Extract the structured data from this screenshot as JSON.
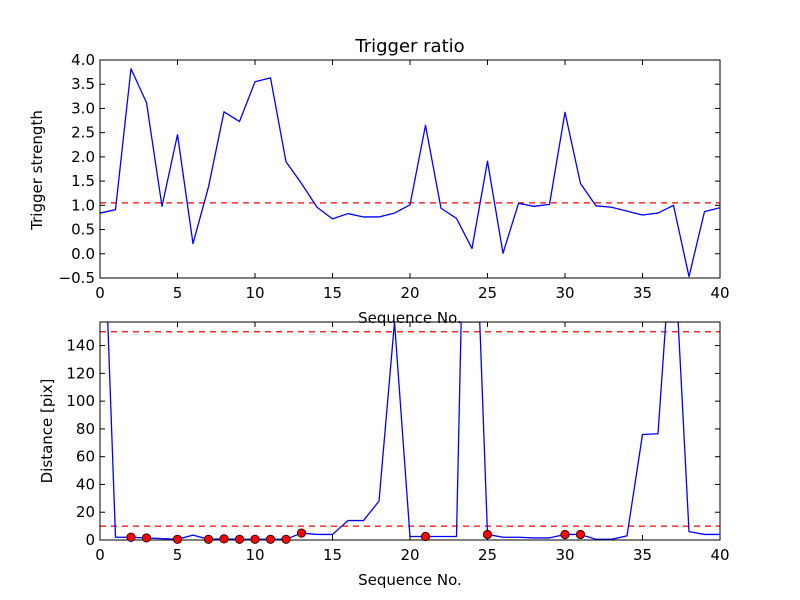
{
  "colors": {
    "line": "#0000ff",
    "threshold": "#ff0000",
    "marker": "#ff0000",
    "frame": "#000000"
  },
  "chart_data": [
    {
      "type": "line",
      "title": "Trigger ratio",
      "xlabel": "Sequence No.",
      "ylabel": "Trigger strength",
      "xlim": [
        0,
        40
      ],
      "ylim": [
        -0.5,
        4.0
      ],
      "xticks": [
        0,
        5,
        10,
        15,
        20,
        25,
        30,
        35,
        40
      ],
      "yticks": [
        -0.5,
        0.0,
        0.5,
        1.0,
        1.5,
        2.0,
        2.5,
        3.0,
        3.5,
        4.0
      ],
      "ytick_labels": [
        "−0.5",
        "0.0",
        "0.5",
        "1.0",
        "1.5",
        "2.0",
        "2.5",
        "3.0",
        "3.5",
        "4.0"
      ],
      "series": [
        {
          "x": [
            0,
            1,
            2,
            3,
            4,
            5,
            6,
            7,
            8,
            9,
            10,
            11,
            12,
            13,
            14,
            15,
            16,
            17,
            18,
            19,
            20,
            21,
            22,
            23,
            24,
            25,
            26,
            27,
            28,
            29,
            30,
            31,
            32,
            33,
            34,
            35,
            36,
            37,
            38,
            39,
            40
          ],
          "y": [
            0.84,
            0.91,
            3.82,
            3.12,
            0.98,
            2.46,
            0.21,
            1.38,
            2.93,
            2.73,
            3.55,
            3.63,
            1.9,
            1.45,
            0.96,
            0.72,
            0.83,
            0.76,
            0.76,
            0.84,
            1.01,
            2.65,
            0.94,
            0.73,
            0.11,
            1.91,
            0.01,
            1.04,
            0.98,
            1.02,
            2.92,
            1.45,
            0.99,
            0.96,
            0.88,
            0.8,
            0.84,
            1.0,
            -0.47,
            0.87,
            0.95
          ]
        }
      ],
      "threshold_lines": [
        1.05
      ]
    },
    {
      "type": "line",
      "xlabel": "Sequence No.",
      "ylabel": "Distance [pix]",
      "xlim": [
        0,
        40
      ],
      "ylim": [
        0,
        157
      ],
      "xticks": [
        0,
        5,
        10,
        15,
        20,
        25,
        30,
        35,
        40
      ],
      "yticks": [
        0,
        20,
        40,
        60,
        80,
        100,
        120,
        140
      ],
      "series": [
        {
          "x": [
            0.5,
            1,
            2,
            3,
            4,
            5,
            6,
            7,
            8,
            9,
            10,
            11,
            12,
            13,
            14,
            15,
            16,
            17,
            18,
            19,
            20,
            21,
            22,
            23,
            23.3,
            24.5,
            25,
            26,
            27,
            28,
            29,
            30,
            31,
            32,
            33,
            34,
            35,
            36,
            36.5,
            37.3,
            38,
            39,
            40
          ],
          "y": [
            157,
            2,
            2,
            1.5,
            1,
            0.5,
            3.5,
            0.5,
            0.8,
            0.5,
            0.5,
            0.5,
            0.5,
            5,
            4,
            4,
            14,
            14,
            28,
            157,
            2.5,
            2.5,
            2.5,
            2.5,
            157,
            157,
            4,
            2,
            2,
            1.5,
            1.5,
            4,
            4,
            0.5,
            0.5,
            3,
            76,
            76.5,
            157,
            157,
            6,
            4,
            4
          ]
        }
      ],
      "markers": {
        "x": [
          2,
          3,
          5,
          7,
          8,
          9,
          10,
          11,
          12,
          13,
          21,
          25,
          30,
          31
        ],
        "y": [
          2,
          1.5,
          0.5,
          0.5,
          0.8,
          0.5,
          0.5,
          0.5,
          0.5,
          5,
          2.5,
          4,
          4,
          4
        ]
      },
      "threshold_lines": [
        150,
        10
      ]
    }
  ]
}
